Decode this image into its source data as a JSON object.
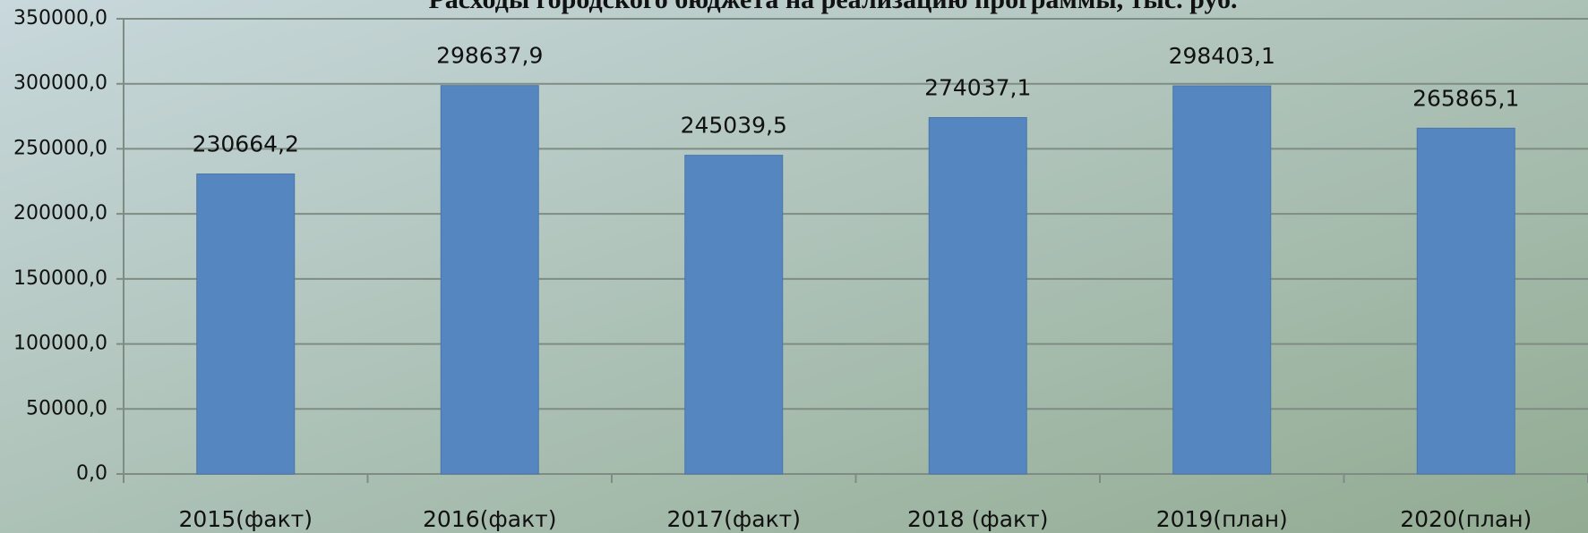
{
  "chart_data": {
    "type": "bar",
    "title": "Расходы городского бюджета на реализацию программы, тыс. руб.",
    "categories": [
      "2015(факт)",
      "2016(факт)",
      "2017(факт)",
      "2018 (факт)",
      "2019(план)",
      "2020(план)"
    ],
    "values": [
      230664.2,
      298637.9,
      245039.5,
      274037.1,
      298403.1,
      265865.1
    ],
    "value_labels": [
      "230664,2",
      "298637,9",
      "245039,5",
      "274037,1",
      "298403,1",
      "265865,1"
    ],
    "color": "#5586c0",
    "ylim": [
      0,
      350000
    ],
    "yticks": [
      {
        "value": 0,
        "label": "0,0"
      },
      {
        "value": 50000,
        "label": "50000,0"
      },
      {
        "value": 100000,
        "label": "100000,0"
      },
      {
        "value": 150000,
        "label": "150000,0"
      },
      {
        "value": 200000,
        "label": "200000,0"
      },
      {
        "value": 250000,
        "label": "250000,0"
      },
      {
        "value": 300000,
        "label": "300000,0"
      },
      {
        "value": 350000,
        "label": "350000,0"
      }
    ],
    "grid": true
  }
}
